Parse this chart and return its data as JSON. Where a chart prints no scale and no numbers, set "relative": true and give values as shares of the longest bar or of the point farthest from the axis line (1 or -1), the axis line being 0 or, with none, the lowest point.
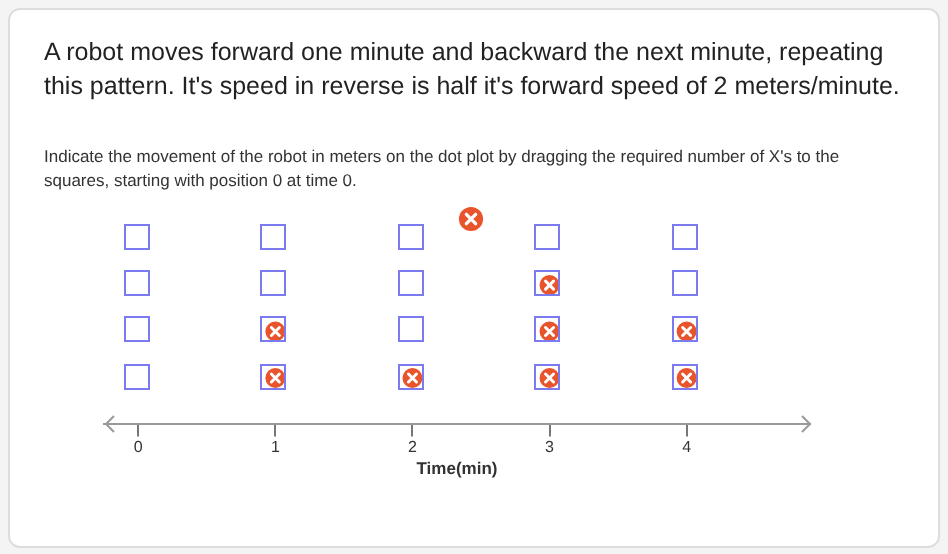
{
  "chart_data": {
    "type": "scatter",
    "title": "A robot moves forward one minute and backward the next minute, repeating this pattern.  It's speed in reverse is half it's forward speed of 2 meters/minute.",
    "subtitle": "Indicate the movement of the robot in meters on the dot plot by dragging the required number of X's to the squares, starting with position 0 at time 0.",
    "xlabel": "Time(min)",
    "series": [
      {
        "color": "#e8542c",
        "x": [
          1,
          1,
          2,
          3,
          3,
          3,
          4,
          4
        ],
        "values": [
          0.333,
          0.667,
          0.333,
          0.333,
          0.667,
          1,
          0.333,
          0.667
        ]
      }
    ],
    "relative": true,
    "xlim": [
      -0.25,
      4.9
    ],
    "xticks": [
      0,
      1,
      2,
      3,
      4
    ],
    "marker": "circle",
    "grid": false,
    "legend": false
  }
}
